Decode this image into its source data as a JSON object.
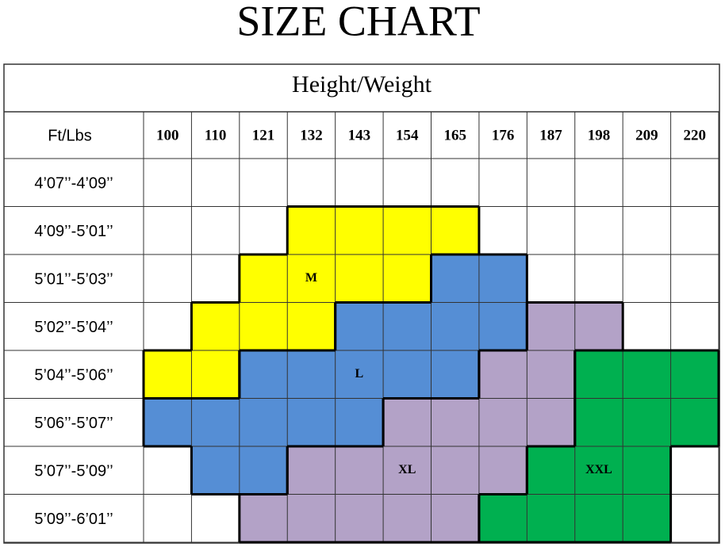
{
  "title": "SIZE CHART",
  "table": {
    "header": "Height/Weight",
    "corner": "Ft/Lbs",
    "columns": [
      "100",
      "110",
      "121",
      "132",
      "143",
      "154",
      "165",
      "176",
      "187",
      "198",
      "209",
      "220"
    ],
    "sizes": [
      {
        "name": "M",
        "color": "#ffff00",
        "label_cell": [
          2,
          3
        ]
      },
      {
        "name": "L",
        "color": "#558ed5",
        "label_cell": [
          4,
          4
        ]
      },
      {
        "name": "XL",
        "color": "#b3a2c7",
        "label_cell": [
          6,
          5
        ]
      },
      {
        "name": "XXL",
        "color": "#00b050",
        "label_cell": [
          6,
          9
        ]
      }
    ],
    "rows": [
      {
        "label": "4’07’’-4’09’’",
        "cells": [
          null,
          null,
          null,
          null,
          null,
          null,
          null,
          null,
          null,
          null,
          null,
          null
        ]
      },
      {
        "label": "4’09’’-5’01’’",
        "cells": [
          null,
          null,
          null,
          "M",
          "M",
          "M",
          "M",
          null,
          null,
          null,
          null,
          null
        ]
      },
      {
        "label": "5’01’’-5’03’’",
        "cells": [
          null,
          null,
          "M",
          "M",
          "M",
          "M",
          "L",
          "L",
          null,
          null,
          null,
          null
        ]
      },
      {
        "label": "5’02’’-5’04’’",
        "cells": [
          null,
          "M",
          "M",
          "M",
          "L",
          "L",
          "L",
          "L",
          "XL",
          "XL",
          null,
          null
        ]
      },
      {
        "label": "5’04’’-5’06’’",
        "cells": [
          "M",
          "M",
          "L",
          "L",
          "L",
          "L",
          "L",
          "XL",
          "XL",
          "XXL",
          "XXL",
          "XXL"
        ]
      },
      {
        "label": "5’06’’-5’07’’",
        "cells": [
          "L",
          "L",
          "L",
          "L",
          "L",
          "XL",
          "XL",
          "XL",
          "XL",
          "XXL",
          "XXL",
          "XXL"
        ]
      },
      {
        "label": "5’07’’-5’09’’",
        "cells": [
          null,
          "L",
          "L",
          "XL",
          "XL",
          "XL",
          "XL",
          "XL",
          "XXL",
          "XXL",
          "XXL",
          null
        ]
      },
      {
        "label": "5’09’’-6’01’’",
        "cells": [
          null,
          null,
          "XL",
          "XL",
          "XL",
          "XL",
          "XL",
          "XXL",
          "XXL",
          "XXL",
          "XXL",
          null
        ]
      }
    ]
  }
}
